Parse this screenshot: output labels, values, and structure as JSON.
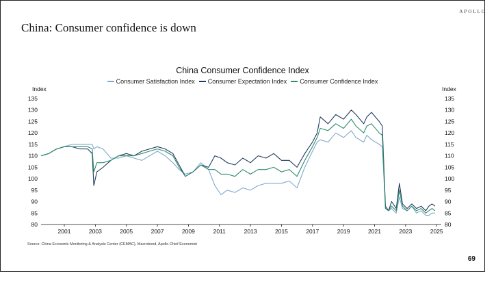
{
  "slide": {
    "brand": "APOLLO",
    "title": "China: Consumer confidence is down",
    "source": "Source: China Economic Monitoring & Analysis Center (CEMAC), Macrobond, Apollo Chief Economist",
    "page_number": "69"
  },
  "chart_data": {
    "type": "line",
    "title": "China Consumer Confidence Index",
    "ylabel_left": "Index",
    "ylabel_right": "Index",
    "ylim": [
      80,
      135
    ],
    "yticks": [
      80,
      85,
      90,
      95,
      100,
      105,
      110,
      115,
      120,
      125,
      130,
      135
    ],
    "xlim": [
      2000.0,
      2025.8
    ],
    "xticks": [
      2001,
      2003,
      2005,
      2007,
      2009,
      2011,
      2013,
      2015,
      2017,
      2019,
      2021,
      2023,
      2025
    ],
    "legend_position": "top-center",
    "grid": false,
    "series": [
      {
        "name": "Consumer Satisfaction Index",
        "color": "#7fa8cf",
        "x": [
          2000.0,
          2000.5,
          2001.0,
          2001.5,
          2002.0,
          2002.5,
          2003.0,
          2003.3,
          2003.4,
          2003.6,
          2004.0,
          2004.5,
          2005.0,
          2005.5,
          2006.0,
          2006.5,
          2007.0,
          2007.5,
          2008.0,
          2008.5,
          2008.9,
          2009.3,
          2009.8,
          2010.3,
          2010.8,
          2011.2,
          2011.6,
          2012.0,
          2012.5,
          2013.0,
          2013.5,
          2014.0,
          2014.5,
          2015.0,
          2015.5,
          2016.0,
          2016.5,
          2017.0,
          2017.5,
          2017.8,
          2018.0,
          2018.5,
          2019.0,
          2019.5,
          2020.0,
          2020.3,
          2020.8,
          2021.0,
          2021.3,
          2021.8,
          2022.0,
          2022.2,
          2022.4,
          2022.6,
          2022.9,
          2023.1,
          2023.3,
          2023.6,
          2023.9,
          2024.2,
          2024.5,
          2024.8,
          2025.0,
          2025.2,
          2025.4
        ],
        "values": [
          110,
          111,
          113,
          114,
          115,
          115,
          115,
          115,
          113,
          114,
          113,
          109,
          109,
          110,
          109,
          108,
          110,
          112,
          110,
          107,
          104,
          102,
          103,
          107,
          104,
          97,
          93,
          95,
          94,
          96,
          95,
          97,
          98,
          98,
          98,
          99,
          96,
          105,
          112,
          116,
          117,
          116,
          120,
          118,
          121,
          118,
          116,
          119,
          117,
          115,
          114,
          87,
          86,
          87,
          85,
          92,
          87,
          86,
          88,
          85,
          86,
          84,
          84,
          85,
          85
        ]
      },
      {
        "name": "Consumer Expectation Index",
        "color": "#1f3a5f",
        "x": [
          2000.0,
          2000.5,
          2001.0,
          2001.5,
          2002.0,
          2002.5,
          2003.0,
          2003.3,
          2003.4,
          2003.6,
          2004.0,
          2004.5,
          2005.0,
          2005.5,
          2006.0,
          2006.5,
          2007.0,
          2007.5,
          2008.0,
          2008.5,
          2008.9,
          2009.3,
          2009.8,
          2010.3,
          2010.8,
          2011.2,
          2011.6,
          2012.0,
          2012.5,
          2013.0,
          2013.5,
          2014.0,
          2014.5,
          2015.0,
          2015.5,
          2016.0,
          2016.5,
          2017.0,
          2017.5,
          2017.8,
          2018.0,
          2018.5,
          2019.0,
          2019.5,
          2020.0,
          2020.3,
          2020.8,
          2021.0,
          2021.3,
          2021.8,
          2022.0,
          2022.2,
          2022.4,
          2022.6,
          2022.9,
          2023.1,
          2023.3,
          2023.6,
          2023.9,
          2024.2,
          2024.5,
          2024.8,
          2025.0,
          2025.2,
          2025.4
        ],
        "values": [
          110,
          111,
          113,
          114,
          114,
          113,
          113,
          111,
          97,
          103,
          105,
          108,
          110,
          111,
          110,
          112,
          113,
          114,
          113,
          111,
          106,
          101,
          103,
          106,
          105,
          110,
          109,
          107,
          106,
          109,
          107,
          110,
          109,
          111,
          108,
          108,
          105,
          111,
          116,
          120,
          127,
          124,
          128,
          126,
          130,
          128,
          124,
          127,
          129,
          125,
          123,
          88,
          86,
          90,
          87,
          98,
          89,
          87,
          89,
          87,
          88,
          86,
          88,
          89,
          88
        ]
      },
      {
        "name": "Consumer Confidence Index",
        "color": "#2e8b6a",
        "x": [
          2000.0,
          2000.5,
          2001.0,
          2001.5,
          2002.0,
          2002.5,
          2003.0,
          2003.3,
          2003.4,
          2003.6,
          2004.0,
          2004.5,
          2005.0,
          2005.5,
          2006.0,
          2006.5,
          2007.0,
          2007.5,
          2008.0,
          2008.5,
          2008.9,
          2009.3,
          2009.8,
          2010.3,
          2010.8,
          2011.2,
          2011.6,
          2012.0,
          2012.5,
          2013.0,
          2013.5,
          2014.0,
          2014.5,
          2015.0,
          2015.5,
          2016.0,
          2016.5,
          2017.0,
          2017.5,
          2017.8,
          2018.0,
          2018.5,
          2019.0,
          2019.5,
          2020.0,
          2020.3,
          2020.8,
          2021.0,
          2021.3,
          2021.8,
          2022.0,
          2022.2,
          2022.4,
          2022.6,
          2022.9,
          2023.1,
          2023.3,
          2023.6,
          2023.9,
          2024.2,
          2024.5,
          2024.8,
          2025.0,
          2025.2,
          2025.4
        ],
        "values": [
          110,
          111,
          113,
          114,
          114,
          114,
          114,
          113,
          103,
          107,
          107,
          108,
          110,
          110,
          110,
          111,
          112,
          113,
          112,
          110,
          105,
          101,
          103,
          106,
          104,
          104,
          102,
          102,
          101,
          104,
          102,
          104,
          104,
          105,
          103,
          104,
          101,
          108,
          114,
          118,
          122,
          121,
          124,
          122,
          126,
          123,
          120,
          123,
          124,
          120,
          119,
          87,
          86,
          88,
          86,
          95,
          88,
          86,
          88,
          86,
          87,
          85,
          86,
          87,
          86
        ]
      }
    ]
  }
}
